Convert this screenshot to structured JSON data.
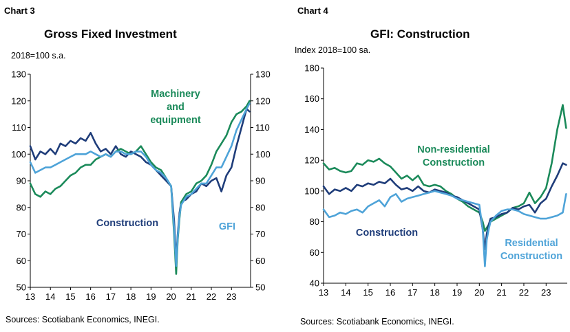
{
  "chart_data": [
    {
      "type": "line",
      "label": "Chart 3",
      "title": "Gross Fixed Investment",
      "ylabel": "2018=100 s.a.",
      "ylim": [
        50,
        130
      ],
      "yticks": [
        50,
        60,
        70,
        80,
        90,
        100,
        110,
        120,
        130
      ],
      "right_yticks": [
        50,
        60,
        70,
        80,
        90,
        100,
        110,
        120,
        130
      ],
      "xlim": [
        2013.0,
        2023.95
      ],
      "x_tick_labels": [
        "13",
        "14",
        "15",
        "16",
        "17",
        "18",
        "19",
        "20",
        "21",
        "22",
        "23"
      ],
      "x": [
        2013.0,
        2013.25,
        2013.5,
        2013.75,
        2014.0,
        2014.25,
        2014.5,
        2014.75,
        2015.0,
        2015.25,
        2015.5,
        2015.75,
        2016.0,
        2016.25,
        2016.5,
        2016.75,
        2017.0,
        2017.25,
        2017.5,
        2017.75,
        2018.0,
        2018.25,
        2018.5,
        2018.75,
        2019.0,
        2019.25,
        2019.5,
        2019.75,
        2020.0,
        2020.15,
        2020.25,
        2020.33,
        2020.42,
        2020.5,
        2020.75,
        2021.0,
        2021.25,
        2021.5,
        2021.75,
        2022.0,
        2022.25,
        2022.5,
        2022.75,
        2023.0,
        2023.25,
        2023.5,
        2023.75,
        2023.9
      ],
      "series": [
        {
          "name": "Construction",
          "color": "#1f3d7a",
          "values": [
            103,
            98,
            101,
            100,
            102,
            100,
            104,
            103,
            105,
            104,
            106,
            105,
            108,
            104,
            101,
            102,
            100,
            103,
            100,
            99,
            101,
            100,
            99,
            97,
            96,
            94,
            92,
            90,
            88,
            75,
            60,
            70,
            78,
            82,
            83,
            85,
            86,
            89,
            88,
            90,
            91,
            86,
            92,
            95,
            103,
            110,
            117,
            116
          ]
        },
        {
          "name": "Machinery and equipment",
          "color": "#1b8a5a",
          "values": [
            89,
            85,
            84,
            86,
            85,
            87,
            88,
            90,
            92,
            93,
            95,
            96,
            96,
            98,
            99,
            100,
            99,
            101,
            102,
            101,
            100,
            101,
            103,
            100,
            97,
            95,
            94,
            91,
            88,
            70,
            55,
            68,
            76,
            82,
            85,
            86,
            89,
            90,
            92,
            96,
            101,
            104,
            107,
            112,
            115,
            116,
            118,
            120
          ]
        },
        {
          "name": "GFI",
          "color": "#4ea3d8",
          "values": [
            97,
            93,
            94,
            95,
            95,
            96,
            97,
            98,
            99,
            100,
            100,
            100,
            101,
            100,
            99,
            100,
            99,
            101,
            101,
            100,
            100,
            101,
            101,
            99,
            96,
            94,
            93,
            91,
            88,
            72,
            58,
            69,
            77,
            81,
            84,
            85,
            87,
            89,
            89,
            92,
            95,
            95,
            99,
            103,
            109,
            113,
            117,
            119
          ]
        }
      ],
      "annotations": [
        {
          "text_lines": [
            "Machinery",
            "and",
            "equipment"
          ],
          "series": "Machinery and equipment"
        },
        {
          "text_lines": [
            "Construction"
          ],
          "series": "Construction"
        },
        {
          "text_lines": [
            "GFI"
          ],
          "series": "GFI"
        }
      ],
      "source": "Sources: Scotiabank Economics, INEGI."
    },
    {
      "type": "line",
      "label": "Chart 4",
      "title": "GFI: Construction",
      "ylabel": "Index 2018=100 sa.",
      "ylim": [
        40,
        180
      ],
      "yticks": [
        40,
        60,
        80,
        100,
        120,
        140,
        160,
        180
      ],
      "xlim": [
        2013.0,
        2023.95
      ],
      "x_tick_labels": [
        "13",
        "14",
        "15",
        "16",
        "17",
        "18",
        "19",
        "20",
        "21",
        "22",
        "23"
      ],
      "x": [
        2013.0,
        2013.25,
        2013.5,
        2013.75,
        2014.0,
        2014.25,
        2014.5,
        2014.75,
        2015.0,
        2015.25,
        2015.5,
        2015.75,
        2016.0,
        2016.25,
        2016.5,
        2016.75,
        2017.0,
        2017.25,
        2017.5,
        2017.75,
        2018.0,
        2018.25,
        2018.5,
        2018.75,
        2019.0,
        2019.25,
        2019.5,
        2019.75,
        2020.0,
        2020.15,
        2020.25,
        2020.33,
        2020.42,
        2020.5,
        2020.75,
        2021.0,
        2021.25,
        2021.5,
        2021.75,
        2022.0,
        2022.25,
        2022.5,
        2022.75,
        2023.0,
        2023.25,
        2023.5,
        2023.75,
        2023.9
      ],
      "series": [
        {
          "name": "Non-residential Construction",
          "color": "#1b8a5a",
          "values": [
            118,
            114,
            115,
            113,
            112,
            113,
            118,
            117,
            120,
            119,
            121,
            118,
            116,
            112,
            108,
            110,
            107,
            110,
            104,
            103,
            104,
            103,
            100,
            98,
            95,
            93,
            90,
            88,
            86,
            80,
            74,
            76,
            78,
            80,
            82,
            84,
            86,
            89,
            90,
            92,
            99,
            92,
            96,
            102,
            118,
            140,
            156,
            141
          ]
        },
        {
          "name": "Construction",
          "color": "#1f3d7a",
          "values": [
            103,
            98,
            101,
            100,
            102,
            100,
            104,
            103,
            105,
            104,
            106,
            105,
            108,
            104,
            101,
            102,
            100,
            103,
            100,
            99,
            101,
            100,
            99,
            97,
            96,
            94,
            92,
            90,
            88,
            75,
            62,
            72,
            78,
            82,
            83,
            85,
            86,
            89,
            88,
            90,
            91,
            86,
            92,
            95,
            103,
            110,
            118,
            117
          ]
        },
        {
          "name": "Residential Construction",
          "color": "#4ea3d8",
          "values": [
            88,
            83,
            84,
            86,
            85,
            87,
            88,
            86,
            90,
            92,
            94,
            90,
            96,
            98,
            93,
            95,
            96,
            97,
            98,
            99,
            100,
            99,
            98,
            97,
            95,
            94,
            93,
            92,
            91,
            75,
            51,
            68,
            75,
            80,
            84,
            87,
            88,
            88,
            87,
            85,
            84,
            83,
            82,
            82,
            83,
            84,
            86,
            98
          ]
        }
      ],
      "annotations": [
        {
          "text_lines": [
            "Non-residential",
            "Construction"
          ],
          "series": "Non-residential Construction"
        },
        {
          "text_lines": [
            "Construction"
          ],
          "series": "Construction"
        },
        {
          "text_lines": [
            "Residential",
            "Construction"
          ],
          "series": "Residential Construction"
        }
      ],
      "source": "Sources: Scotiabank Economics, INEGI."
    }
  ]
}
